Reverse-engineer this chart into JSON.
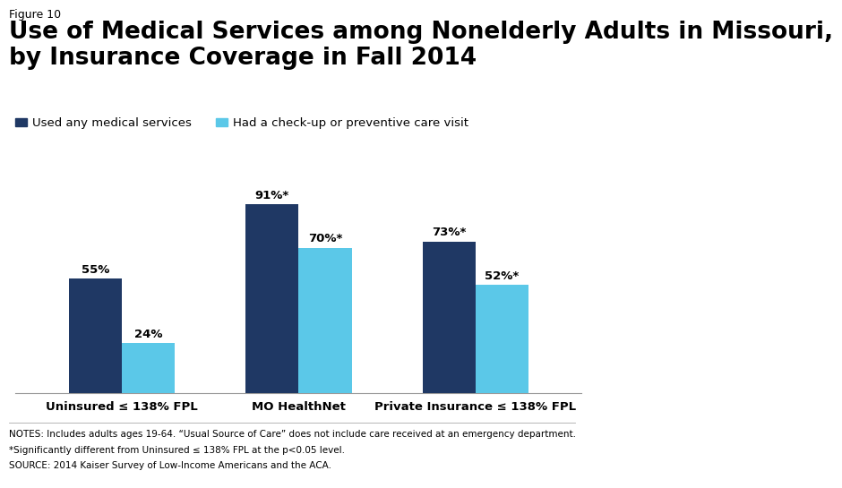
{
  "figure_label": "Figure 10",
  "title": "Use of Medical Services among Nonelderly Adults in Missouri,\nby Insurance Coverage in Fall 2014",
  "categories": [
    "Uninsured ≤ 138% FPL",
    "MO HealthNet",
    "Private Insurance ≤ 138% FPL"
  ],
  "series": [
    {
      "name": "Used any medical services",
      "values": [
        55,
        91,
        73
      ],
      "labels": [
        "55%",
        "91%*",
        "73%*"
      ],
      "color": "#1f3864"
    },
    {
      "name": "Had a check-up or preventive care visit",
      "values": [
        24,
        70,
        52
      ],
      "labels": [
        "24%",
        "70%*",
        "52%*"
      ],
      "color": "#5bc8e8"
    }
  ],
  "ylim": [
    0,
    100
  ],
  "bar_width": 0.3,
  "notes_line1": "NOTES: Includes adults ages 19-64. “Usual Source of Care” does not include care received at an emergency department.",
  "notes_line2": "*Significantly different from Uninsured ≤ 138% FPL at the p<0.05 level.",
  "notes_line3": "SOURCE: 2014 Kaiser Survey of Low-Income Americans and the ACA.",
  "bg_color": "#ffffff",
  "title_fontsize": 19,
  "label_fontsize": 9.5,
  "tick_fontsize": 9.5,
  "notes_fontsize": 7.5,
  "legend_fontsize": 9.5,
  "figure_label_fontsize": 9
}
